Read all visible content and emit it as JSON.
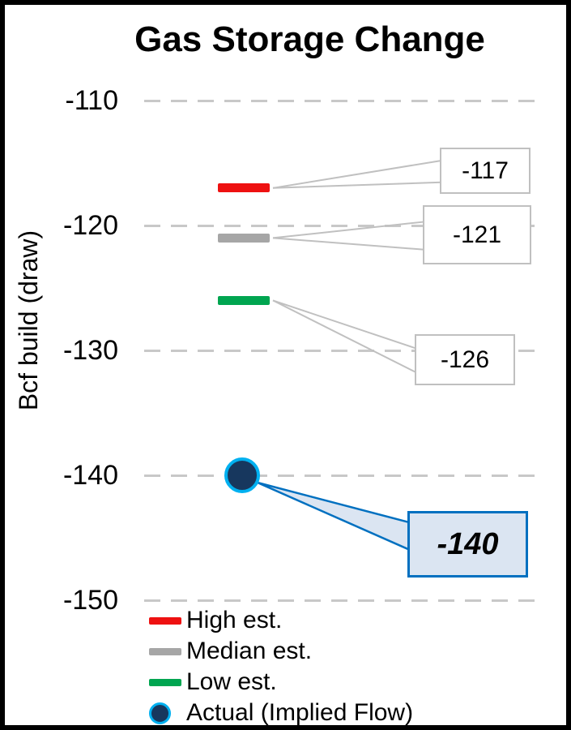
{
  "chart_data": {
    "type": "scatter",
    "title": "Gas Storage Change",
    "xlabel": "",
    "ylabel": "Bcf build (draw)",
    "ylim": [
      -150,
      -110
    ],
    "yticks": [
      -110,
      -120,
      -130,
      -140,
      -150
    ],
    "grid": true,
    "legend_position": "bottom-left",
    "series": [
      {
        "name": "High est.",
        "value": -117,
        "label": "-117",
        "marker": "dash",
        "color": "#ee1111"
      },
      {
        "name": "Median est.",
        "value": -121,
        "label": "-121",
        "marker": "dash",
        "color": "#a6a6a6"
      },
      {
        "name": "Low est.",
        "value": -126,
        "label": "-126",
        "marker": "dash",
        "color": "#00a550"
      },
      {
        "name": "Actual (Implied Flow)",
        "value": -140,
        "label": "-140",
        "marker": "circle",
        "color": "#17375e",
        "outline": "#00b0f0"
      }
    ]
  },
  "style": {
    "grid_color": "#c8c8c8",
    "callout_border": "#c0c0c0",
    "leader_color": "#c0c0c0",
    "actual_box_bg": "#dbe5f2",
    "actual_box_border": "#0070c0",
    "frame_border": "#000000"
  }
}
